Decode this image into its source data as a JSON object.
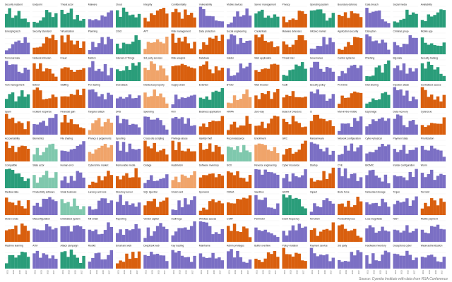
{
  "source": "Source: Cyentia Institute with data from RSA Conference",
  "colors": {
    "green": "#2a9d7a",
    "purple": "#7b6fc4",
    "orange": "#d95f0e",
    "peach": "#f0a46a",
    "mint": "#7fc8ad",
    "grid": "#e6e6e6"
  },
  "chart_data": {
    "type": "bar",
    "layout": "small-multiples",
    "x": [
      "2011",
      "2013",
      "2015",
      "2017"
    ],
    "panels": [
      {
        "title": "Security incident",
        "color": "green"
      },
      {
        "title": "Endpoint",
        "color": "green"
      },
      {
        "title": "Threat actor",
        "color": "green"
      },
      {
        "title": "Malware",
        "color": "purple"
      },
      {
        "title": "Cloud",
        "color": "green"
      },
      {
        "title": "Integrity",
        "color": "orange"
      },
      {
        "title": "Confidentiality",
        "color": "orange"
      },
      {
        "title": "Vulnerability",
        "color": "purple"
      },
      {
        "title": "Mobile devices",
        "color": "purple"
      },
      {
        "title": "Server management",
        "color": "green"
      },
      {
        "title": "Privacy",
        "color": "orange"
      },
      {
        "title": "Operating system",
        "color": "green"
      },
      {
        "title": "Boundary defense",
        "color": "orange"
      },
      {
        "title": "Data breach",
        "color": "purple"
      },
      {
        "title": "Social media",
        "color": "green"
      },
      {
        "title": "Availability",
        "color": "green"
      },
      {
        "title": "Emerging tech",
        "color": "purple"
      },
      {
        "title": "Security standard",
        "color": "orange"
      },
      {
        "title": "Virtualization",
        "color": "orange"
      },
      {
        "title": "Planning",
        "color": "purple"
      },
      {
        "title": "CISO",
        "color": "green"
      },
      {
        "title": "APT",
        "color": "peach"
      },
      {
        "title": "Risk management",
        "color": "orange"
      },
      {
        "title": "Data protection",
        "color": "orange"
      },
      {
        "title": "Social engineering",
        "color": "purple"
      },
      {
        "title": "Credentials",
        "color": "orange"
      },
      {
        "title": "Malware defenses",
        "color": "orange"
      },
      {
        "title": "InfoSec market",
        "color": "purple"
      },
      {
        "title": "Application security",
        "color": "orange"
      },
      {
        "title": "Disruption",
        "color": "purple"
      },
      {
        "title": "Criminal group",
        "color": "purple"
      },
      {
        "title": "Mobile app",
        "color": "green"
      },
      {
        "title": "Personal data",
        "color": "purple"
      },
      {
        "title": "Network intrusion",
        "color": "orange"
      },
      {
        "title": "Fraud",
        "color": "orange"
      },
      {
        "title": "Metrics",
        "color": "purple"
      },
      {
        "title": "Internet of Things",
        "color": "green"
      },
      {
        "title": "3rd party services",
        "color": "peach"
      },
      {
        "title": "Risk analysis",
        "color": "orange"
      },
      {
        "title": "Database",
        "color": "orange"
      },
      {
        "title": "Insider",
        "color": "purple"
      },
      {
        "title": "Web application",
        "color": "orange"
      },
      {
        "title": "Threat intel",
        "color": "green"
      },
      {
        "title": "Governance",
        "color": "purple"
      },
      {
        "title": "Control systems",
        "color": "purple"
      },
      {
        "title": "Phishing",
        "color": "green"
      },
      {
        "title": "Big data",
        "color": "purple"
      },
      {
        "title": "Security training",
        "color": "green"
      },
      {
        "title": "Vuln management",
        "color": "green"
      },
      {
        "title": "Botnet",
        "color": "orange"
      },
      {
        "title": "Staffing",
        "color": "orange"
      },
      {
        "title": "Pen testing",
        "color": "purple"
      },
      {
        "title": "DoS attack",
        "color": "purple"
      },
      {
        "title": "Intellectual property",
        "color": "peach"
      },
      {
        "title": "Supply chain",
        "color": "purple"
      },
      {
        "title": "Extortion",
        "color": "green"
      },
      {
        "title": "BYOD",
        "color": "peach"
      },
      {
        "title": "Web browser",
        "color": "orange"
      },
      {
        "title": "Audit",
        "color": "orange"
      },
      {
        "title": "Security policy",
        "color": "purple"
      },
      {
        "title": "PCI-DSS",
        "color": "orange"
      },
      {
        "title": "Intel sharing",
        "color": "green"
      },
      {
        "title": "Injection attack",
        "color": "purple"
      },
      {
        "title": "Centralized access",
        "color": "orange"
      },
      {
        "title": "Spam",
        "color": "orange"
      },
      {
        "title": "Incident response",
        "color": "purple"
      },
      {
        "title": "Financial gain",
        "color": "orange"
      },
      {
        "title": "Targeted attack",
        "color": "peach"
      },
      {
        "title": "DNS",
        "color": "purple"
      },
      {
        "title": "Spending",
        "color": "purple"
      },
      {
        "title": "ROI",
        "color": "purple"
      },
      {
        "title": "Business application",
        "color": "orange"
      },
      {
        "title": "HIPAA",
        "color": "orange"
      },
      {
        "title": "Zero-day",
        "color": "orange"
      },
      {
        "title": "Board of Directors",
        "color": "orange"
      },
      {
        "title": "CI",
        "color": "orange"
      },
      {
        "title": "Man-in-the-middle",
        "color": "purple"
      },
      {
        "title": "Espionage",
        "color": "purple"
      },
      {
        "title": "Data recovery",
        "color": "purple"
      },
      {
        "title": "Cybercrue",
        "color": "orange"
      },
      {
        "title": "Accountability",
        "color": "orange"
      },
      {
        "title": "Biometrics",
        "color": "mint"
      },
      {
        "title": "File sharing",
        "color": "purple"
      },
      {
        "title": "Privacy & judgements",
        "color": "peach"
      },
      {
        "title": "Spoofing",
        "color": "purple"
      },
      {
        "title": "Cross-site scripting",
        "color": "orange"
      },
      {
        "title": "Privilege abuse",
        "color": "orange"
      },
      {
        "title": "Identity theft",
        "color": "orange"
      },
      {
        "title": "Reconnaissance",
        "color": "mint"
      },
      {
        "title": "Enrollment",
        "color": "peach"
      },
      {
        "title": "GRC",
        "color": "orange"
      },
      {
        "title": "Ransomware",
        "color": "purple"
      },
      {
        "title": "Network configuration",
        "color": "purple"
      },
      {
        "title": "Cyber+physical",
        "color": "purple"
      },
      {
        "title": "Payment data",
        "color": "purple"
      },
      {
        "title": "Prioritization",
        "color": "purple"
      },
      {
        "title": "Compatible",
        "color": "green"
      },
      {
        "title": "State actor",
        "color": "mint"
      },
      {
        "title": "Human error",
        "color": "purple"
      },
      {
        "title": "Cybercrime market",
        "color": "orange"
      },
      {
        "title": "Removable media",
        "color": "orange"
      },
      {
        "title": "Outage",
        "color": "purple"
      },
      {
        "title": "Hacktivism",
        "color": "peach"
      },
      {
        "title": "Software inventory",
        "color": "orange"
      },
      {
        "title": "SOX",
        "color": "orange"
      },
      {
        "title": "Reverse engineering",
        "color": "purple"
      },
      {
        "title": "Cyber insurance",
        "color": "purple"
      },
      {
        "title": "Startup",
        "color": "orange"
      },
      {
        "title": "CVE",
        "color": "purple"
      },
      {
        "title": "BIOMIC",
        "color": "purple"
      },
      {
        "title": "Insider configuration",
        "color": "purple"
      },
      {
        "title": "Worm",
        "color": "purple"
      },
      {
        "title": "Medical data",
        "color": "orange"
      },
      {
        "title": "Productivity software",
        "color": "purple"
      },
      {
        "title": "Small business",
        "color": "mint"
      },
      {
        "title": "Larceny and loss",
        "color": "purple"
      },
      {
        "title": "Directory server",
        "color": "purple"
      },
      {
        "title": "SQL injection",
        "color": "orange"
      },
      {
        "title": "Smart card",
        "color": "purple"
      },
      {
        "title": "Sponsors",
        "color": "orange"
      },
      {
        "title": "FISMA",
        "color": "orange"
      },
      {
        "title": "Sandbox",
        "color": "purple"
      },
      {
        "title": "GDPR",
        "color": "green"
      },
      {
        "title": "Impact",
        "color": "purple"
      },
      {
        "title": "Brute force",
        "color": "orange"
      },
      {
        "title": "Networked storage",
        "color": "purple"
      },
      {
        "title": "Trojan",
        "color": "purple"
      },
      {
        "title": "Terrorist",
        "color": "orange"
      },
      {
        "title": "Stolen creds",
        "color": "orange"
      },
      {
        "title": "Misconfiguration",
        "color": "purple"
      },
      {
        "title": "Embedded system",
        "color": "purple"
      },
      {
        "title": "Kill Chain",
        "color": "purple"
      },
      {
        "title": "Reporting",
        "color": "purple"
      },
      {
        "title": "Vendor capital",
        "color": "purple"
      },
      {
        "title": "Audit logs",
        "color": "purple"
      },
      {
        "title": "Wireless access",
        "color": "purple"
      },
      {
        "title": "CSRF",
        "color": "orange"
      },
      {
        "title": "Perimeter",
        "color": "purple"
      },
      {
        "title": "Event frequency",
        "color": "purple"
      },
      {
        "title": "Terrorism",
        "color": "orange"
      },
      {
        "title": "Productivity loss",
        "color": "orange"
      },
      {
        "title": "Loss magnitude",
        "color": "purple"
      },
      {
        "title": "NIST",
        "color": "purple"
      },
      {
        "title": "Mobile payment",
        "color": "purple"
      },
      {
        "title": "Machine learning",
        "color": "green"
      },
      {
        "title": "ATM",
        "color": "purple"
      },
      {
        "title": "Attack campaign",
        "color": "green"
      },
      {
        "title": "Rootkit",
        "color": "purple"
      },
      {
        "title": "Email and web",
        "color": "orange"
      },
      {
        "title": "DeepDark web",
        "color": "purple"
      },
      {
        "title": "Key loading",
        "color": "purple"
      },
      {
        "title": "Mainframe",
        "color": "purple"
      },
      {
        "title": "Admin privileges",
        "color": "purple"
      },
      {
        "title": "Buffer overflow",
        "color": "orange"
      },
      {
        "title": "Policy violation",
        "color": "orange"
      },
      {
        "title": "Payment service",
        "color": "purple"
      },
      {
        "title": "3rd party",
        "color": "purple"
      },
      {
        "title": "Hardware inventory",
        "color": "purple"
      },
      {
        "title": "Deceptions cyber",
        "color": "purple"
      },
      {
        "title": "Weak authentication",
        "color": "purple"
      }
    ]
  }
}
